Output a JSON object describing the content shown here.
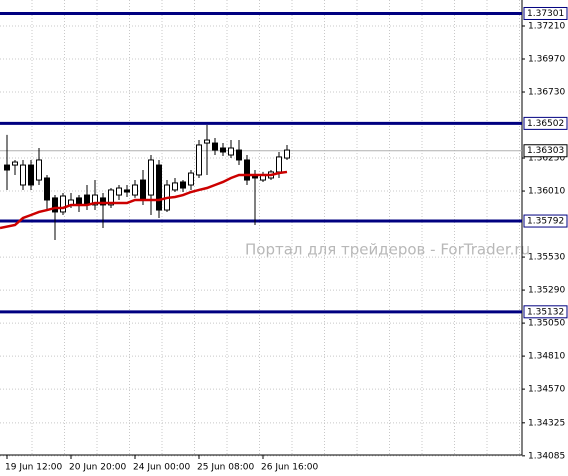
{
  "chart_data": {
    "type": "candlestick",
    "watermark": "Портал для трейдеров - ForTrader.ru",
    "categories": [
      "19 Jun 12:00",
      null,
      null,
      null,
      null,
      null,
      null,
      null,
      "20 Jun 20:00",
      null,
      null,
      null,
      null,
      null,
      null,
      null,
      "24 Jun 00:00",
      null,
      null,
      null,
      null,
      null,
      null,
      null,
      "25 Jun 08:00",
      null,
      null,
      null,
      null,
      null,
      null,
      null,
      "26 Jun 16:00",
      null,
      null,
      null
    ],
    "open": [
      1.36199,
      1.36199,
      1.36054,
      1.36199,
      1.3609,
      1.36105,
      1.3596,
      1.35858,
      1.35909,
      1.3596,
      1.35981,
      1.35909,
      1.3596,
      1.35909,
      1.35981,
      1.36018,
      1.35981,
      1.3609,
      1.35981,
      1.36199,
      1.35872,
      1.36018,
      1.36076,
      1.36054,
      1.36127,
      1.36359,
      1.36359,
      1.36323,
      1.36272,
      1.36308,
      1.36236,
      1.36127,
      1.3609,
      1.36105,
      1.36149,
      1.3625
    ],
    "high": [
      1.36418,
      1.36236,
      1.36236,
      1.36236,
      1.36323,
      1.36127,
      1.35981,
      1.35996,
      1.35996,
      1.35981,
      1.36054,
      1.3609,
      1.35996,
      1.36032,
      1.36054,
      1.36054,
      1.3609,
      1.36163,
      1.36272,
      1.36236,
      1.3609,
      1.36105,
      1.3609,
      1.36163,
      1.36381,
      1.3649,
      1.36396,
      1.36359,
      1.36381,
      1.36381,
      1.36272,
      1.36163,
      1.36149,
      1.36163,
      1.36294,
      1.36345
    ],
    "low": [
      1.36018,
      1.36127,
      1.36018,
      1.36018,
      1.36054,
      1.35872,
      1.35654,
      1.35836,
      1.35887,
      1.35858,
      1.35872,
      1.35872,
      1.35741,
      1.35887,
      1.35945,
      1.35967,
      1.3596,
      1.35909,
      1.35836,
      1.35814,
      1.35858,
      1.36003,
      1.36003,
      1.36018,
      1.36105,
      1.36127,
      1.36272,
      1.36265,
      1.3625,
      1.36199,
      1.36054,
      1.35763,
      1.36076,
      1.3609,
      1.36105,
      1.36236
    ],
    "close": [
      1.36163,
      1.36221,
      1.36199,
      1.36054,
      1.36236,
      1.35945,
      1.35858,
      1.35974,
      1.35945,
      1.35909,
      1.35909,
      1.35981,
      1.35909,
      1.36018,
      1.36032,
      1.36003,
      1.36054,
      1.35945,
      1.36236,
      1.35872,
      1.36054,
      1.36069,
      1.36032,
      1.36141,
      1.36345,
      1.36381,
      1.36308,
      1.36294,
      1.36323,
      1.36236,
      1.3609,
      1.36105,
      1.36127,
      1.36149,
      1.36258,
      1.36308
    ],
    "moving_average": {
      "color": "#cc0000",
      "values": [
        1.35741,
        1.35763,
        1.35814,
        1.35836,
        1.35858,
        1.35872,
        1.35887,
        1.35887,
        1.35909,
        1.35909,
        1.35909,
        1.35923,
        1.35923,
        1.35923,
        1.35923,
        1.35923,
        1.35945,
        1.35945,
        1.35945,
        1.35945,
        1.3596,
        1.35967,
        1.35981,
        1.36003,
        1.36018,
        1.36032,
        1.36054,
        1.36076,
        1.36105,
        1.36127,
        1.36127,
        1.36127,
        1.36127,
        1.36127,
        1.36141,
        1.36149
      ]
    },
    "levels": [
      1.37301,
      1.36502,
      1.35792,
      1.35132
    ],
    "level_color": "#000080",
    "current_price": 1.36303,
    "ylim": [
      1.34091,
      1.37399
    ],
    "yticks": [
      {
        "value": 1.3721,
        "label": "1.37210"
      },
      {
        "value": 1.3697,
        "label": "1.36970"
      },
      {
        "value": 1.3673,
        "label": "1.36730"
      },
      {
        "value": 1.3625,
        "label": "1.36250"
      },
      {
        "value": 1.3601,
        "label": "1.36010"
      },
      {
        "value": 1.3553,
        "label": "1.35530"
      },
      {
        "value": 1.3529,
        "label": "1.35290"
      },
      {
        "value": 1.3505,
        "label": "1.35050"
      },
      {
        "value": 1.3481,
        "label": "1.34810"
      },
      {
        "value": 1.3457,
        "label": "1.34570"
      },
      {
        "value": 1.34325,
        "label": "1.34325"
      },
      {
        "value": 1.34085,
        "label": "1.34085"
      }
    ],
    "grid": true
  }
}
